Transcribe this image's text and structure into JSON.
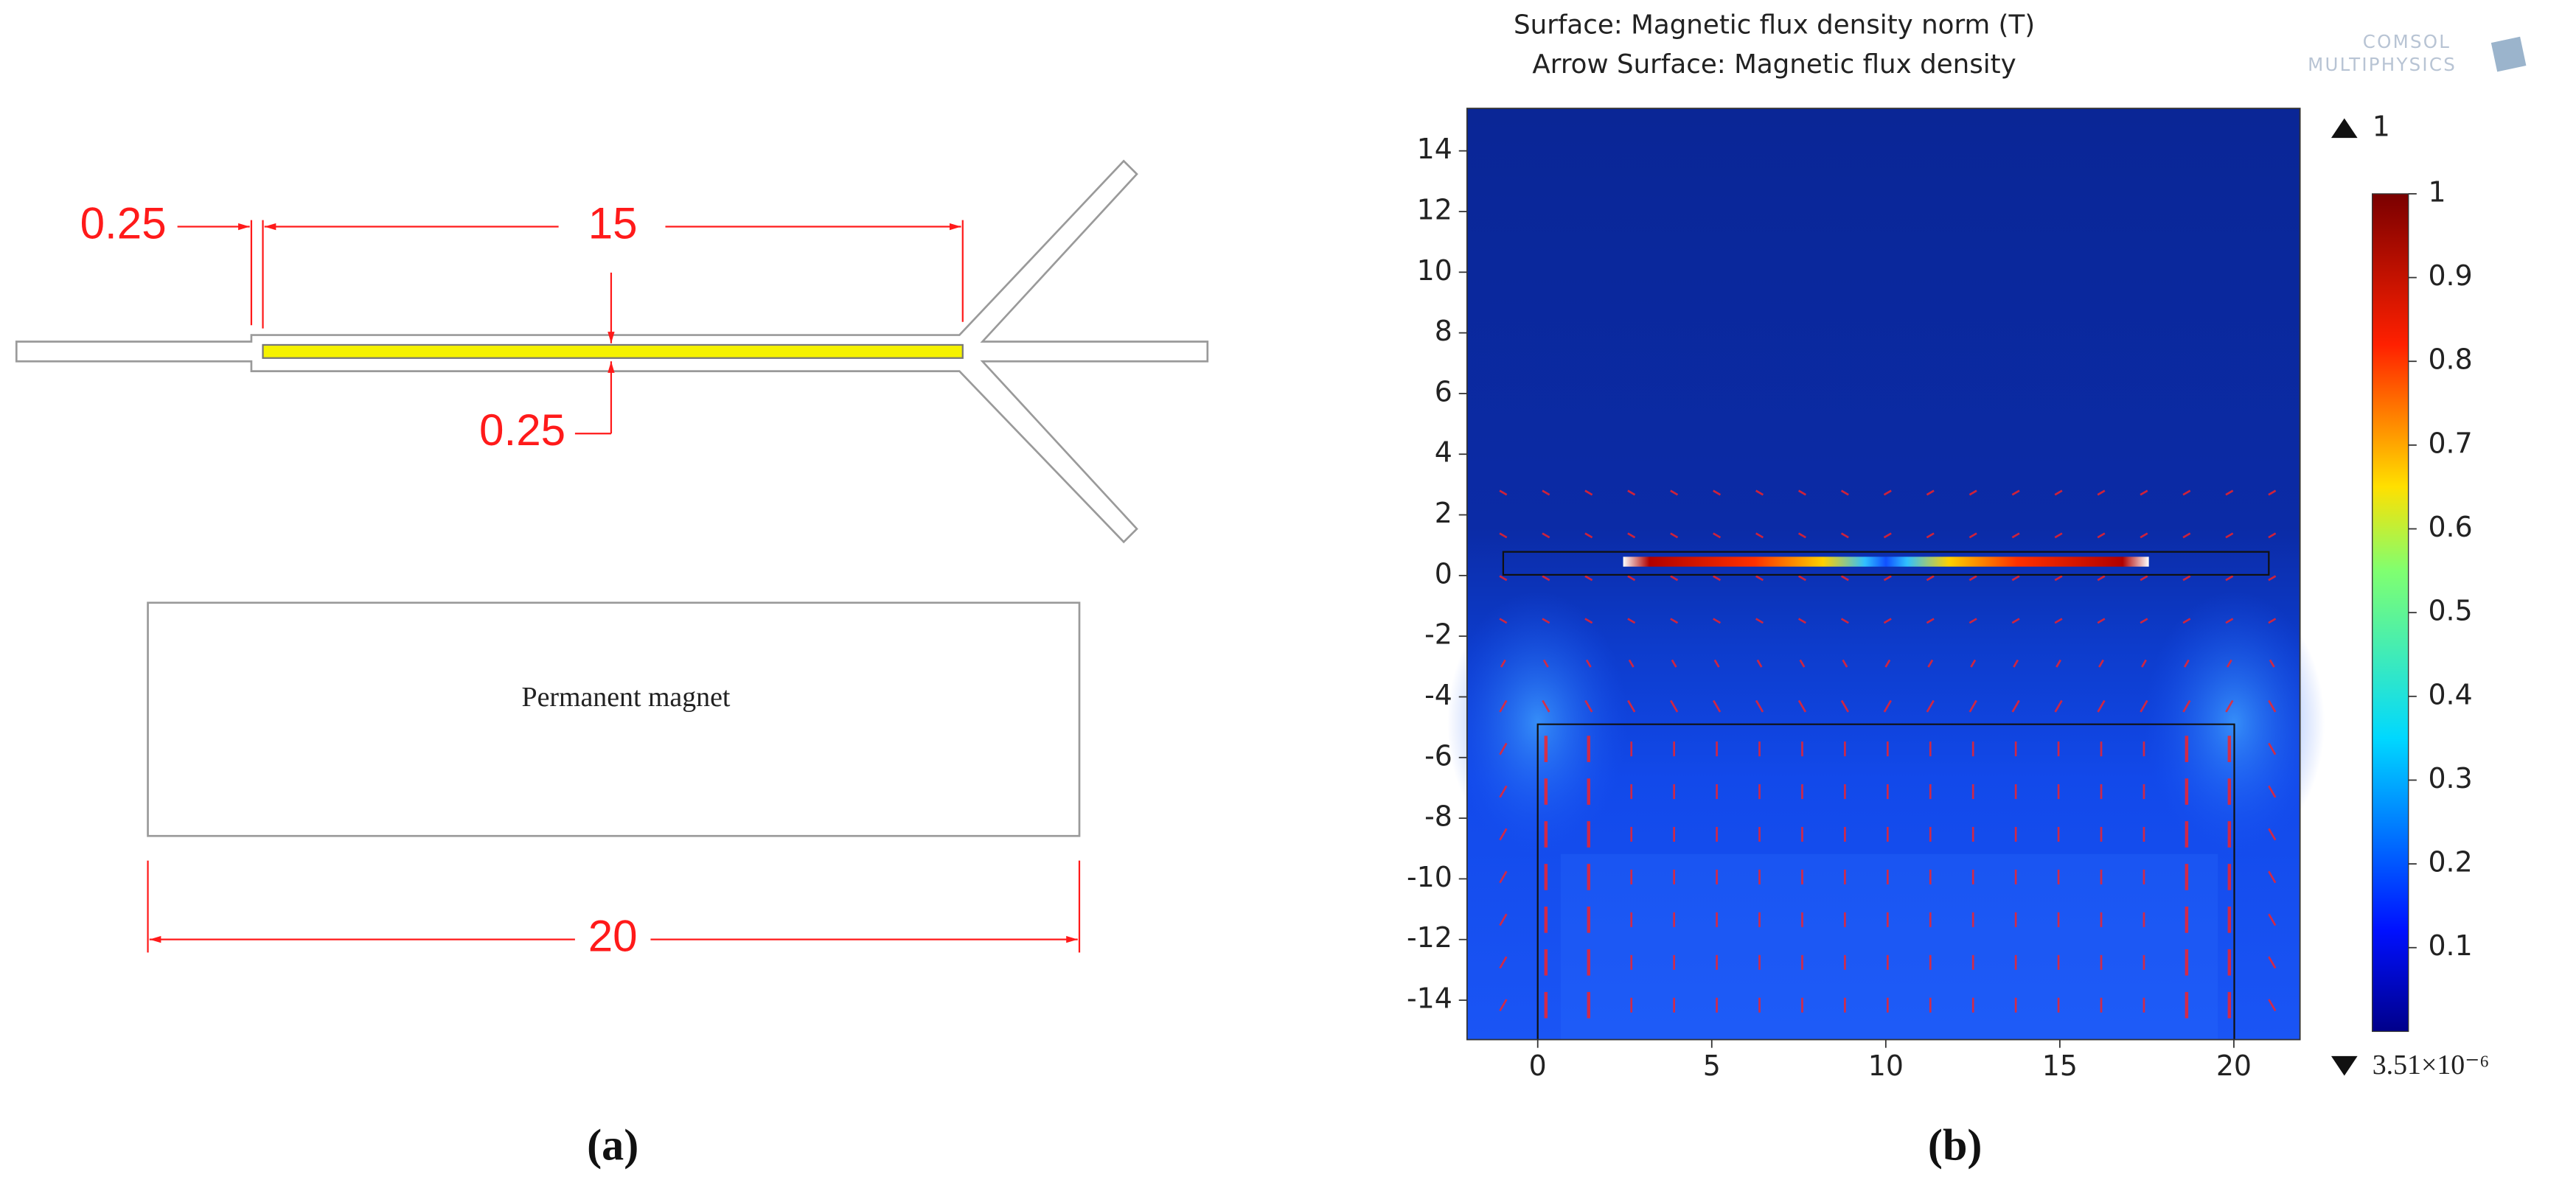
{
  "panel_a": {
    "dimensions": {
      "left_gap": "0.25",
      "channel_length": "15",
      "channel_gap": "0.25",
      "magnet_width": "20"
    },
    "magnet_label": "Permanent magnet",
    "caption": "(a)"
  },
  "panel_b": {
    "title_lines": [
      "Surface: Magnetic flux density norm (T)",
      "Arrow Surface: Magnetic flux density"
    ],
    "logo": [
      "COMSOL",
      "MULTIPHYSICS"
    ],
    "xlim": [
      -2.03,
      21.9
    ],
    "ylim": [
      -15.3,
      15.4
    ],
    "xticks": [
      0,
      5,
      10,
      15,
      20
    ],
    "yticks": [
      -14,
      -12,
      -10,
      -8,
      -6,
      -4,
      -2,
      0,
      2,
      4,
      6,
      8,
      10,
      12,
      14
    ],
    "colorbar": {
      "range": [
        0,
        1
      ],
      "ticks": [
        0.1,
        0.2,
        0.3,
        0.4,
        0.5,
        0.6,
        0.7,
        0.8,
        0.9,
        1
      ],
      "max_label": "1",
      "min_label": "3.51×10⁻⁶"
    },
    "caption": "(b)"
  }
}
